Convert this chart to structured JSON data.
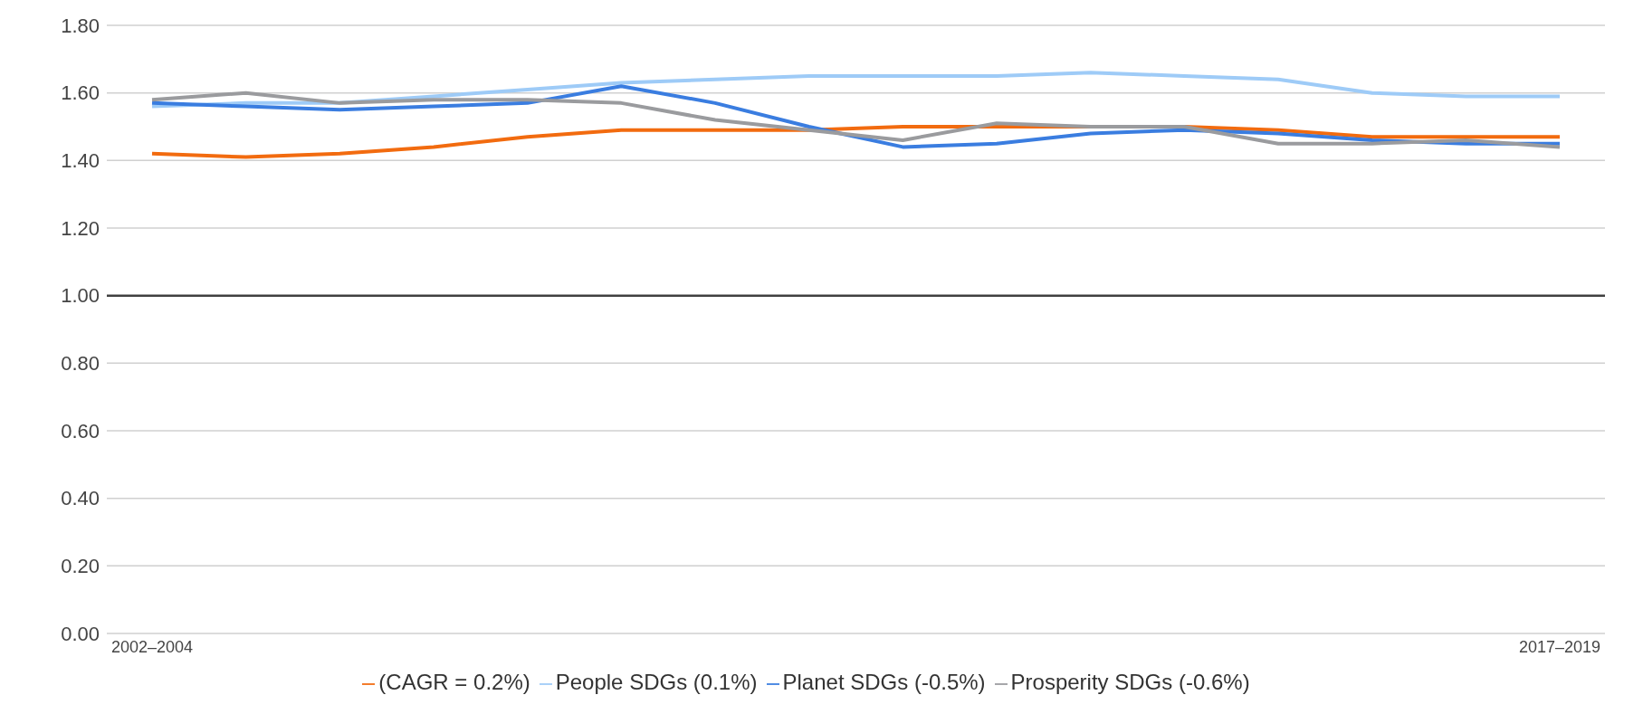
{
  "chart_data": {
    "type": "line",
    "categories": [
      "2002–2004",
      null,
      null,
      null,
      null,
      null,
      null,
      null,
      null,
      null,
      null,
      null,
      null,
      null,
      null,
      "2017–2019"
    ],
    "series": [
      {
        "name": "(CAGR = 0.2%)",
        "color": "#f26b0f",
        "values": [
          1.42,
          1.41,
          1.42,
          1.44,
          1.47,
          1.49,
          1.49,
          1.49,
          1.5,
          1.5,
          1.5,
          1.5,
          1.49,
          1.47,
          1.47,
          1.47
        ]
      },
      {
        "name": "People SDGs (0.1%)",
        "color": "#9ecbf7",
        "values": [
          1.56,
          1.57,
          1.57,
          1.59,
          1.61,
          1.63,
          1.64,
          1.65,
          1.65,
          1.65,
          1.66,
          1.65,
          1.64,
          1.6,
          1.59,
          1.59
        ]
      },
      {
        "name": "Planet SDGs (-0.5%)",
        "color": "#3a7de0",
        "values": [
          1.57,
          1.56,
          1.55,
          1.56,
          1.57,
          1.62,
          1.57,
          1.5,
          1.44,
          1.45,
          1.48,
          1.49,
          1.48,
          1.46,
          1.45,
          1.45
        ]
      },
      {
        "name": "Prosperity SDGs (-0.6%)",
        "color": "#9a9b9e",
        "values": [
          1.58,
          1.6,
          1.57,
          1.58,
          1.58,
          1.57,
          1.52,
          1.49,
          1.46,
          1.51,
          1.5,
          1.5,
          1.45,
          1.45,
          1.46,
          1.44
        ]
      }
    ],
    "ylim": [
      0,
      1.8
    ],
    "yticks": [
      {
        "value": 0,
        "label": "0.00"
      },
      {
        "value": 0.2,
        "label": "0.20"
      },
      {
        "value": 0.4,
        "label": "0.40"
      },
      {
        "value": 0.6,
        "label": "0.60"
      },
      {
        "value": 0.8,
        "label": "0.80"
      },
      {
        "value": 1,
        "label": "1.00"
      },
      {
        "value": 1.2,
        "label": "1.20"
      },
      {
        "value": 1.4,
        "label": "1.40"
      },
      {
        "value": 1.6,
        "label": "1.60"
      },
      {
        "value": 1.8,
        "label": "1.80"
      }
    ],
    "ref_lines": [
      {
        "axis": "y",
        "value": 1,
        "color": "#404040"
      }
    ],
    "grid": "y",
    "legend": "bottom",
    "marker": "none",
    "line_style": "solid"
  }
}
